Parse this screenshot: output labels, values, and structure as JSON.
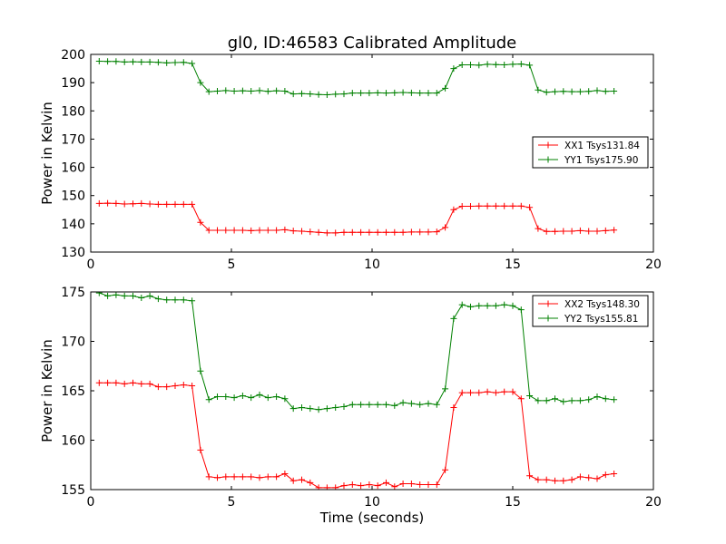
{
  "title": "gl0, ID:46583 Calibrated Amplitude",
  "colors": {
    "XX": "#ff0000",
    "YY": "#008000"
  },
  "chart_data": [
    {
      "type": "line",
      "title": "gl0, ID:46583 Calibrated Amplitude",
      "xlabel": "",
      "ylabel": "Power in Kelvin",
      "xlim": [
        0,
        20
      ],
      "ylim": [
        130,
        200
      ],
      "xticks": [
        0,
        5,
        10,
        15,
        20
      ],
      "yticks": [
        130,
        140,
        150,
        160,
        170,
        180,
        190,
        200
      ],
      "grid": false,
      "legend": "center-right",
      "x": [
        0.3,
        0.6,
        0.9,
        1.2,
        1.5,
        1.8,
        2.1,
        2.4,
        2.7,
        3.0,
        3.3,
        3.6,
        3.9,
        4.2,
        4.5,
        4.8,
        5.1,
        5.4,
        5.7,
        6.0,
        6.3,
        6.6,
        6.9,
        7.2,
        7.5,
        7.8,
        8.1,
        8.4,
        8.7,
        9.0,
        9.3,
        9.6,
        9.9,
        10.2,
        10.5,
        10.8,
        11.1,
        11.4,
        11.7,
        12.0,
        12.3,
        12.6,
        12.9,
        13.2,
        13.5,
        13.8,
        14.1,
        14.4,
        14.7,
        15.0,
        15.3,
        15.6,
        15.9,
        16.2,
        16.5,
        16.8,
        17.1,
        17.4,
        17.7,
        18.0,
        18.3,
        18.6
      ],
      "series": [
        {
          "name": "XX1 Tsys131.84",
          "color": "#ff0000",
          "values": [
            147.2,
            147.3,
            147.2,
            147.0,
            147.1,
            147.2,
            147.0,
            146.9,
            146.9,
            146.9,
            146.9,
            146.9,
            140.5,
            137.7,
            137.7,
            137.7,
            137.7,
            137.7,
            137.6,
            137.7,
            137.7,
            137.7,
            137.9,
            137.5,
            137.4,
            137.2,
            137.0,
            136.8,
            136.8,
            137.0,
            137.0,
            137.0,
            137.0,
            137.0,
            137.0,
            137.0,
            137.0,
            137.1,
            137.1,
            137.1,
            137.2,
            138.7,
            145.0,
            146.2,
            146.2,
            146.3,
            146.3,
            146.3,
            146.3,
            146.3,
            146.3,
            145.8,
            138.3,
            137.3,
            137.3,
            137.4,
            137.4,
            137.6,
            137.4,
            137.4,
            137.6,
            137.8
          ]
        },
        {
          "name": "YY1 Tsys175.90",
          "color": "#008000",
          "values": [
            197.6,
            197.5,
            197.5,
            197.3,
            197.4,
            197.3,
            197.3,
            197.2,
            197.0,
            197.1,
            197.2,
            196.8,
            190.0,
            186.8,
            187.0,
            187.2,
            187.0,
            187.1,
            187.0,
            187.2,
            186.9,
            187.1,
            187.0,
            186.0,
            186.1,
            186.0,
            185.8,
            185.7,
            185.9,
            186.0,
            186.3,
            186.3,
            186.3,
            186.4,
            186.3,
            186.4,
            186.5,
            186.4,
            186.3,
            186.3,
            186.3,
            188.0,
            195.0,
            196.3,
            196.3,
            196.2,
            196.5,
            196.4,
            196.3,
            196.5,
            196.6,
            196.2,
            187.4,
            186.6,
            186.8,
            186.9,
            186.8,
            186.8,
            186.9,
            187.2,
            186.9,
            187.0
          ]
        }
      ]
    },
    {
      "type": "line",
      "title": "",
      "xlabel": "Time (seconds)",
      "ylabel": "Power in Kelvin",
      "xlim": [
        0,
        20
      ],
      "ylim": [
        155,
        175
      ],
      "xticks": [
        0,
        5,
        10,
        15,
        20
      ],
      "yticks": [
        155,
        160,
        165,
        170,
        175
      ],
      "grid": false,
      "legend": "top-right",
      "x": [
        0.3,
        0.6,
        0.9,
        1.2,
        1.5,
        1.8,
        2.1,
        2.4,
        2.7,
        3.0,
        3.3,
        3.6,
        3.9,
        4.2,
        4.5,
        4.8,
        5.1,
        5.4,
        5.7,
        6.0,
        6.3,
        6.6,
        6.9,
        7.2,
        7.5,
        7.8,
        8.1,
        8.4,
        8.7,
        9.0,
        9.3,
        9.6,
        9.9,
        10.2,
        10.5,
        10.8,
        11.1,
        11.4,
        11.7,
        12.0,
        12.3,
        12.6,
        12.9,
        13.2,
        13.5,
        13.8,
        14.1,
        14.4,
        14.7,
        15.0,
        15.3,
        15.6,
        15.9,
        16.2,
        16.5,
        16.8,
        17.1,
        17.4,
        17.7,
        18.0,
        18.3,
        18.6
      ],
      "series": [
        {
          "name": "XX2 Tsys148.30",
          "color": "#ff0000",
          "values": [
            165.8,
            165.8,
            165.8,
            165.7,
            165.8,
            165.7,
            165.7,
            165.4,
            165.4,
            165.5,
            165.6,
            165.5,
            159.0,
            156.3,
            156.2,
            156.3,
            156.3,
            156.3,
            156.3,
            156.2,
            156.3,
            156.3,
            156.6,
            155.9,
            156.0,
            155.7,
            155.2,
            155.2,
            155.2,
            155.4,
            155.5,
            155.4,
            155.5,
            155.4,
            155.7,
            155.3,
            155.6,
            155.6,
            155.5,
            155.5,
            155.5,
            157.0,
            163.3,
            164.8,
            164.8,
            164.8,
            164.9,
            164.8,
            164.9,
            164.9,
            164.2,
            156.4,
            156.0,
            156.0,
            155.9,
            155.9,
            156.0,
            156.3,
            156.2,
            156.1,
            156.5,
            156.6
          ]
        },
        {
          "name": "YY2 Tsys155.81",
          "color": "#008000",
          "values": [
            174.9,
            174.6,
            174.7,
            174.6,
            174.6,
            174.4,
            174.6,
            174.3,
            174.2,
            174.2,
            174.2,
            174.1,
            167.0,
            164.1,
            164.4,
            164.4,
            164.3,
            164.5,
            164.3,
            164.6,
            164.3,
            164.4,
            164.2,
            163.2,
            163.3,
            163.2,
            163.1,
            163.2,
            163.3,
            163.4,
            163.6,
            163.6,
            163.6,
            163.6,
            163.6,
            163.5,
            163.8,
            163.7,
            163.6,
            163.7,
            163.6,
            165.2,
            172.3,
            173.7,
            173.5,
            173.6,
            173.6,
            173.6,
            173.7,
            173.6,
            173.2,
            164.5,
            164.0,
            164.0,
            164.2,
            163.9,
            164.0,
            164.0,
            164.1,
            164.4,
            164.2,
            164.1
          ]
        }
      ]
    }
  ]
}
